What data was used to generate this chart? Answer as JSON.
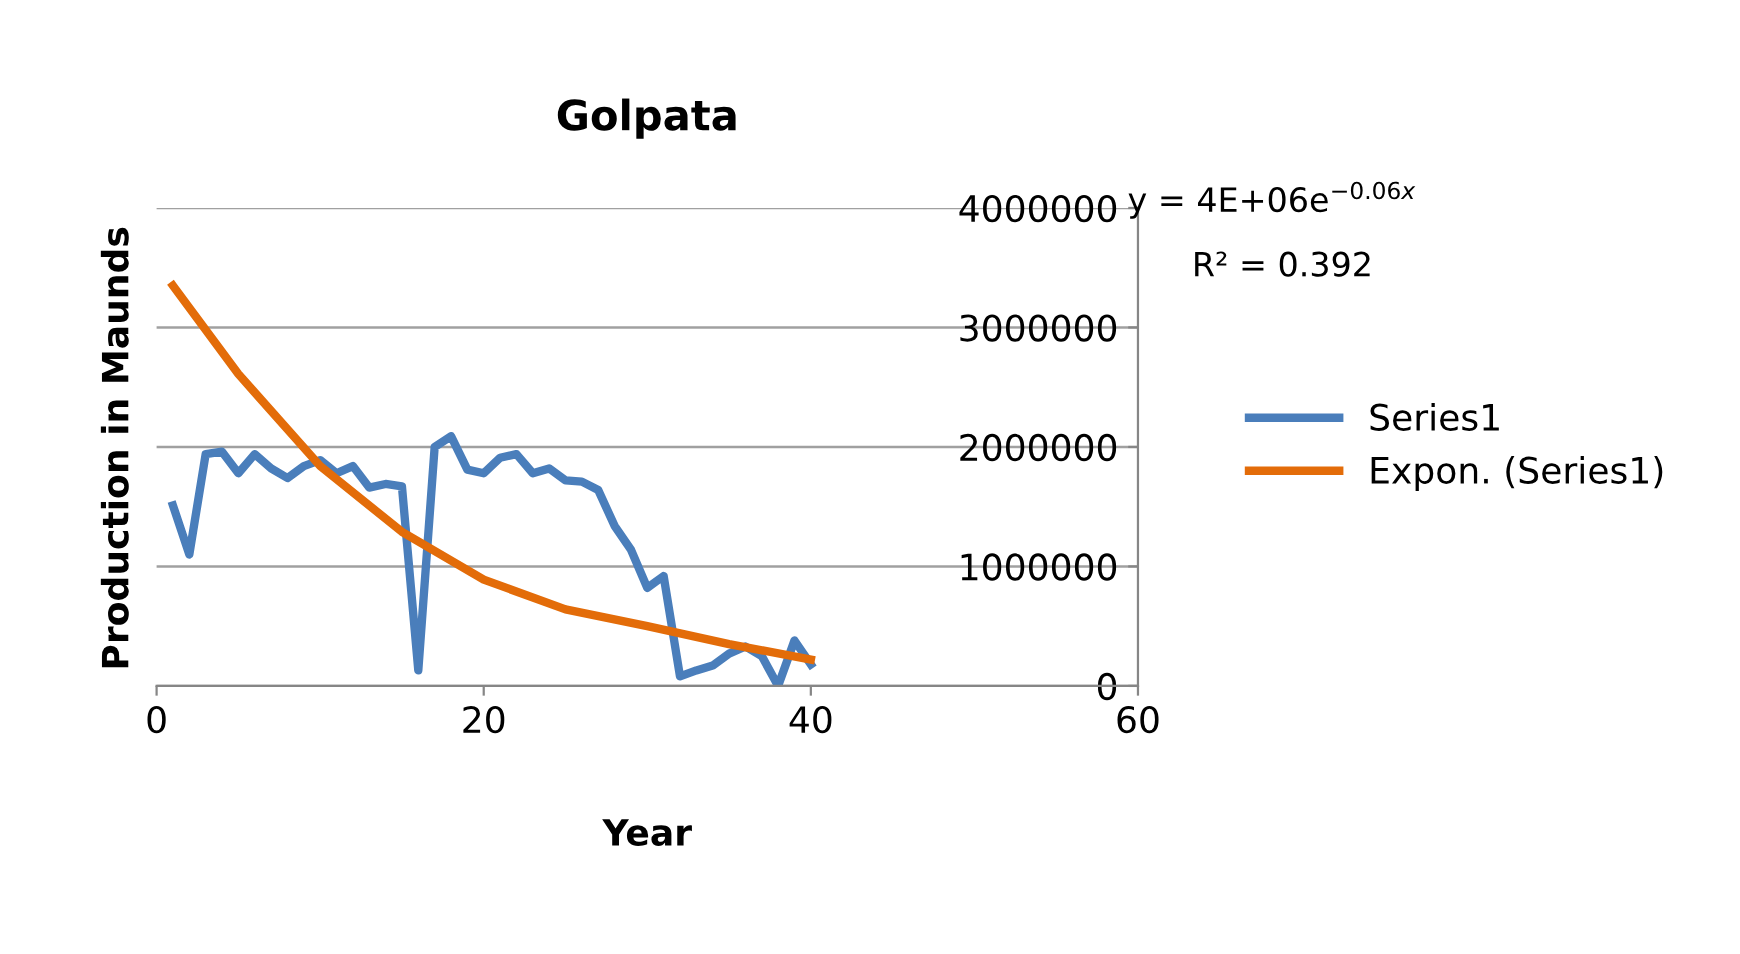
{
  "chart_data": {
    "type": "line",
    "title": "Golpata",
    "xlabel": "Year",
    "ylabel": "Production in Maunds",
    "x": [
      1,
      2,
      3,
      4,
      5,
      6,
      7,
      8,
      9,
      10,
      11,
      12,
      13,
      14,
      15,
      16,
      17,
      18,
      19,
      20,
      21,
      22,
      23,
      24,
      25,
      26,
      27,
      28,
      29,
      30,
      31,
      32,
      33,
      34,
      35,
      36,
      37,
      38,
      39,
      40
    ],
    "series": [
      {
        "name": "Series1",
        "color": "#4a7ebb",
        "values": [
          1510000,
          1100000,
          1940000,
          1960000,
          1780000,
          1940000,
          1820000,
          1740000,
          1840000,
          1890000,
          1780000,
          1840000,
          1660000,
          1690000,
          1670000,
          130000,
          2000000,
          2090000,
          1810000,
          1780000,
          1910000,
          1940000,
          1780000,
          1820000,
          1720000,
          1710000,
          1640000,
          1340000,
          1140000,
          820000,
          920000,
          80000,
          130000,
          170000,
          270000,
          330000,
          250000,
          0,
          380000,
          180000
        ]
      },
      {
        "name": "Expon. (Series1)",
        "color": "#e36c09",
        "x": [
          1,
          5,
          10,
          15,
          20,
          25,
          30,
          35,
          40
        ],
        "values": [
          3350000,
          2610000,
          1840000,
          1290000,
          890000,
          640000,
          500000,
          350000,
          220000
        ]
      }
    ],
    "xlim": [
      0,
      60
    ],
    "xticks": [
      0,
      20,
      40,
      60
    ],
    "ylim": [
      0,
      4000000
    ],
    "yticks": [
      0,
      1000000,
      2000000,
      3000000,
      4000000
    ],
    "grid": "y",
    "legend": "right",
    "marker": "none",
    "line_style": "solid",
    "annotations": [
      "y = 4E+06e$^{−0.06x}$",
      "R² = 0.392"
    ]
  }
}
